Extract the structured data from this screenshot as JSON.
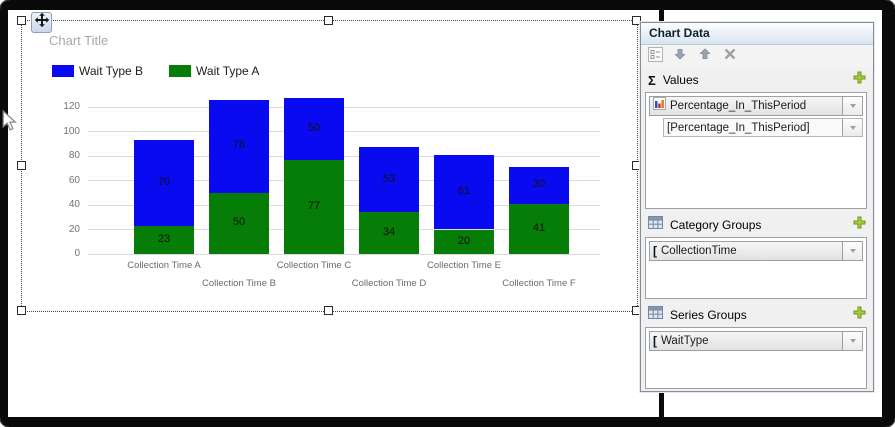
{
  "chart_data": {
    "type": "bar",
    "stacked": true,
    "title": "Chart Title",
    "categories": [
      "Collection Time A",
      "Collection Time B",
      "Collection Time C",
      "Collection Time D",
      "Collection Time E",
      "Collection Time F"
    ],
    "series": [
      {
        "name": "Wait Type A",
        "color": "#067d06",
        "values": [
          23,
          50,
          77,
          34,
          20,
          41
        ]
      },
      {
        "name": "Wait Type B",
        "color": "#0a0af0",
        "values": [
          70,
          76,
          50,
          53,
          61,
          30
        ]
      }
    ],
    "legend_items": [
      {
        "label": "Wait Type B",
        "color": "#0a0af0"
      },
      {
        "label": "Wait Type A",
        "color": "#067d06"
      }
    ],
    "y_ticks": [
      0,
      20,
      40,
      60,
      80,
      100,
      120
    ],
    "ylim": [
      0,
      130
    ],
    "grid": true,
    "legend_position": "top-left",
    "data_labels": true,
    "xlabel": "",
    "ylabel": ""
  },
  "panel": {
    "title": "Chart Data",
    "toolbar": {
      "icons": [
        "properties",
        "move-down",
        "move-up",
        "delete"
      ]
    },
    "sections": [
      {
        "label": "Values",
        "icon": "sigma",
        "fields": [
          {
            "text": "Percentage_In_ThisPeriod",
            "icon": "chart-bars"
          },
          {
            "text": "[Percentage_In_ThisPeriod]",
            "icon": "none",
            "indent": true
          }
        ]
      },
      {
        "label": "Category Groups",
        "icon": "table",
        "fields": [
          {
            "text": "CollectionTime",
            "icon": "bracket"
          }
        ]
      },
      {
        "label": "Series Groups",
        "icon": "table",
        "fields": [
          {
            "text": "WaitType",
            "icon": "bracket"
          }
        ]
      }
    ]
  },
  "icons": {
    "sigma": "Σ",
    "bracket": "["
  }
}
